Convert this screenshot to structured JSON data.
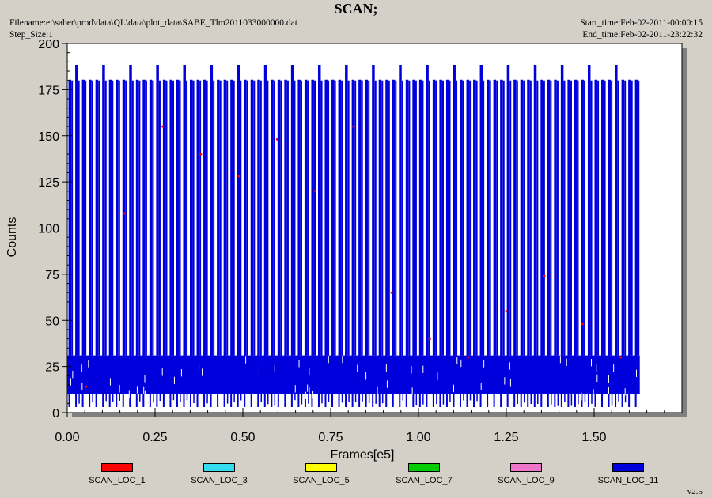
{
  "header": {
    "title": "SCAN;",
    "filename": "Filename:e:\\saber\\prod\\data\\QL\\data\\plot_data\\SABE_Tlm2011033000000.dat",
    "step_size": "Step_Size:1",
    "start_time": "Start_time:Feb-02-2011-00:00:15",
    "end_time": "End_time:Feb-02-2011-23:22:32"
  },
  "version": "v2.5",
  "chart_data": {
    "type": "line",
    "title": "SCAN;",
    "xlabel": "Frames[e5]",
    "ylabel": "Counts",
    "xlim": [
      0,
      1.75
    ],
    "ylim": [
      0,
      200
    ],
    "x_ticks": [
      "0.00",
      "0.25",
      "0.50",
      "0.75",
      "1.00",
      "1.25",
      "1.50"
    ],
    "y_ticks": [
      "0",
      "25",
      "50",
      "75",
      "100",
      "125",
      "150",
      "175",
      "200"
    ],
    "grid": false,
    "legend_position": "bottom",
    "legend": [
      {
        "name": "SCAN_LOC_1",
        "color": "#ff0000"
      },
      {
        "name": "SCAN_LOC_3",
        "color": "#33ddee"
      },
      {
        "name": "SCAN_LOC_5",
        "color": "#ffff00"
      },
      {
        "name": "SCAN_LOC_7",
        "color": "#00cc00"
      },
      {
        "name": "SCAN_LOC_9",
        "color": "#ee77cc"
      },
      {
        "name": "SCAN_LOC_11",
        "color": "#0000dd"
      }
    ],
    "series": [
      {
        "name": "SCAN_LOC_11",
        "color": "#0000dd",
        "x_range": [
          0.0,
          1.63
        ],
        "noise_band": [
          10,
          31
        ],
        "sweep_peaks": [
          180,
          188
        ],
        "sweep_min": 3,
        "sweep_period": 0.0192
      },
      {
        "name": "SCAN_LOC_1",
        "color": "#ff0000",
        "x_range": [
          0.0,
          1.63
        ],
        "values_approx": [
          14,
          108,
          155,
          140,
          128,
          148,
          120,
          155,
          65,
          40,
          30,
          55,
          74,
          48,
          30
        ]
      }
    ]
  }
}
